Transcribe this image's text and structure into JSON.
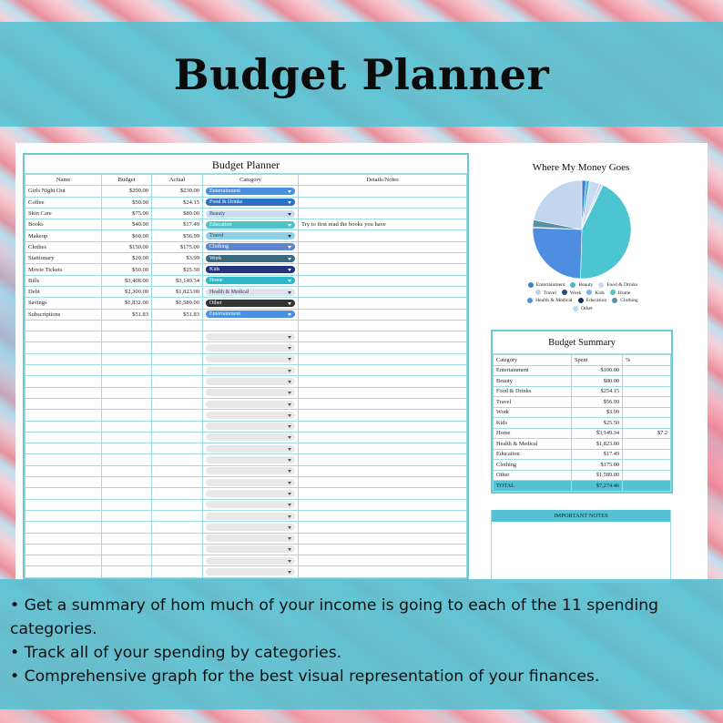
{
  "banner": {
    "title": "Budget Planner"
  },
  "planner": {
    "title": "Budget Planner",
    "columns": [
      "Name",
      "Budget",
      "Actual",
      "Category",
      "Details/Notes"
    ],
    "rows": [
      {
        "name": "Girls Night Out",
        "budget": "$200.00",
        "actual": "$230.00",
        "category": "Entertainment",
        "color": "#4a90e2",
        "notes": ""
      },
      {
        "name": "Coffee",
        "budget": "$50.00",
        "actual": "$24.15",
        "category": "Food & Drinks",
        "color": "#2f6fc8",
        "notes": ""
      },
      {
        "name": "Skin Care",
        "budget": "$75.00",
        "actual": "$80.00",
        "category": "Beauty",
        "color": "#c8def2",
        "notes": ""
      },
      {
        "name": "Books",
        "budget": "$40.00",
        "actual": "$17.49",
        "category": "Education",
        "color": "#4fc3c9",
        "notes": "Try to first read the books you have"
      },
      {
        "name": "Makeup",
        "budget": "$60.00",
        "actual": "$56.99",
        "category": "Travel",
        "color": "#8fd0e6",
        "notes": ""
      },
      {
        "name": "Clothes",
        "budget": "$150.00",
        "actual": "$175.00",
        "category": "Clothing",
        "color": "#5d86cf",
        "notes": ""
      },
      {
        "name": "Staitionary",
        "budget": "$20.00",
        "actual": "$3.99",
        "category": "Work",
        "color": "#3a6a80",
        "notes": ""
      },
      {
        "name": "Movie Tickets",
        "budget": "$50.00",
        "actual": "$25.50",
        "category": "Kids",
        "color": "#23337f",
        "notes": ""
      },
      {
        "name": "Bills",
        "budget": "$3,408.00",
        "actual": "$3,149.34",
        "category": "Home",
        "color": "#2ab7c8",
        "notes": ""
      },
      {
        "name": "Debt",
        "budget": "$2,300.00",
        "actual": "$1,823.00",
        "category": "Health & Medical",
        "color": "#dde3ea",
        "notes": ""
      },
      {
        "name": "Savings",
        "budget": "$1,832.00",
        "actual": "$1,589.00",
        "category": "Other",
        "color": "#333333",
        "notes": ""
      },
      {
        "name": "Subscriptions",
        "budget": "$51.83",
        "actual": "$51.83",
        "category": "Entertainment",
        "color": "#4a90e2",
        "notes": ""
      }
    ]
  },
  "chart_data": {
    "type": "pie",
    "title": "Where My Money Goes",
    "categories": [
      "Entertainment",
      "Beauty",
      "Food & Drinks",
      "Travel",
      "Work",
      "Kids",
      "Home",
      "Health & Medical",
      "Education",
      "Clothing",
      "Other"
    ],
    "values": [
      100.0,
      80.0,
      254.15,
      56.99,
      3.99,
      25.5,
      3149.34,
      1823.0,
      17.49,
      175.0,
      1589.0
    ],
    "colors": [
      "#3f7ed8",
      "#47b8c8",
      "#c9dbf3",
      "#bcd3ef",
      "#1f4e79",
      "#7fb0e3",
      "#4cc4d2",
      "#4d8ee0",
      "#17305c",
      "#5a8fa8",
      "#c4d6ee"
    ],
    "legend_position": "bottom"
  },
  "summary": {
    "title": "Budget Summary",
    "headers": [
      "Category",
      "Spent",
      "%"
    ],
    "rows": [
      {
        "category": "Entertainment",
        "spent": "$100.00",
        "pct": ""
      },
      {
        "category": "Beauty",
        "spent": "$80.00",
        "pct": ""
      },
      {
        "category": "Food & Drinks",
        "spent": "$254.15",
        "pct": ""
      },
      {
        "category": "Travel",
        "spent": "$56.99",
        "pct": ""
      },
      {
        "category": "Work",
        "spent": "$3.99",
        "pct": ""
      },
      {
        "category": "Kids",
        "spent": "$25.50",
        "pct": ""
      },
      {
        "category": "Home",
        "spent": "$3,149.34",
        "pct": "$7.2"
      },
      {
        "category": "Health & Medical",
        "spent": "$1,823.00",
        "pct": ""
      },
      {
        "category": "Education",
        "spent": "$17.49",
        "pct": ""
      },
      {
        "category": "Clothing",
        "spent": "$175.00",
        "pct": ""
      },
      {
        "category": "Other",
        "spent": "$1,589.00",
        "pct": ""
      }
    ],
    "total_label": "TOTAL",
    "total_value": "$7,274.46"
  },
  "notes": {
    "heading": "IMPORTANT NOTES"
  },
  "features": [
    "• Get a summary of hom much of your income is going to each of the 11 spending categories.",
    "• Track all of your spending by categories.",
    "• Comprehensive graph for the best visual representation of your finances."
  ],
  "colors": {
    "accent": "#54c2d2",
    "border": "#9fdbe3"
  }
}
